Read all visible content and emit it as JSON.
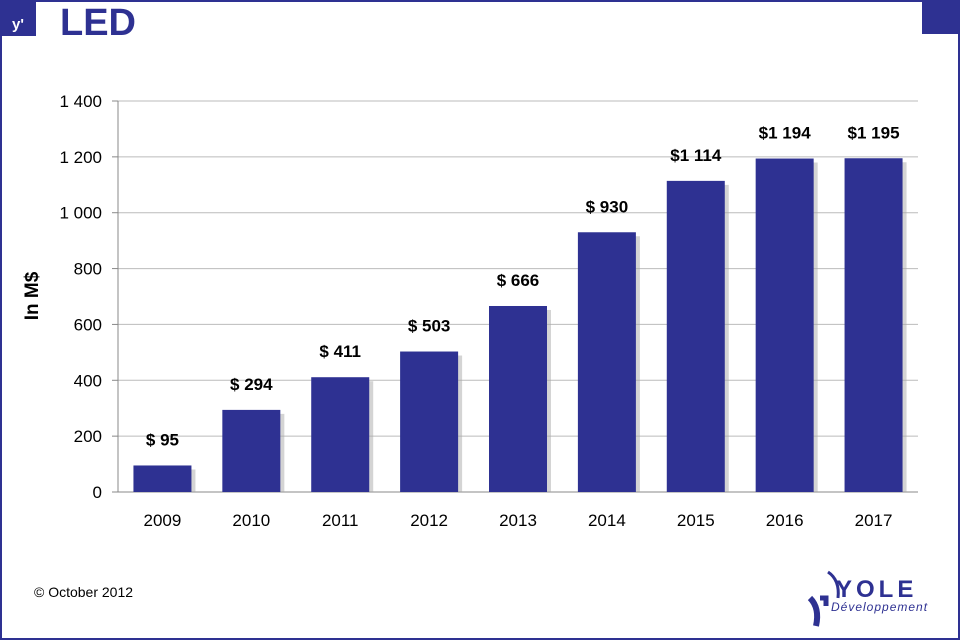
{
  "header": {
    "title": "LED",
    "logo_text": "y'"
  },
  "footer": {
    "copyright": "© October 2012",
    "brand": "YOLE",
    "brand_sub": "Développement"
  },
  "colors": {
    "bar": "#2e3192",
    "accent": "#2e3192"
  },
  "chart_data": {
    "type": "bar",
    "title": "LED",
    "xlabel": "",
    "ylabel": "In M$",
    "ylim": [
      0,
      1400
    ],
    "yticks": [
      0,
      200,
      400,
      600,
      800,
      1000,
      1200,
      1400
    ],
    "ytick_labels": [
      "0",
      "200",
      "400",
      "600",
      "800",
      "1 000",
      "1 200",
      "1 400"
    ],
    "grid": true,
    "categories": [
      "2009",
      "2010",
      "2011",
      "2012",
      "2013",
      "2014",
      "2015",
      "2016",
      "2017"
    ],
    "values": [
      95,
      294,
      411,
      503,
      666,
      930,
      1114,
      1194,
      1195
    ],
    "data_labels": [
      "$ 95",
      "$ 294",
      "$ 411",
      "$ 503",
      "$ 666",
      "$ 930",
      "$1 114",
      "$1 194",
      "$1 195"
    ]
  }
}
